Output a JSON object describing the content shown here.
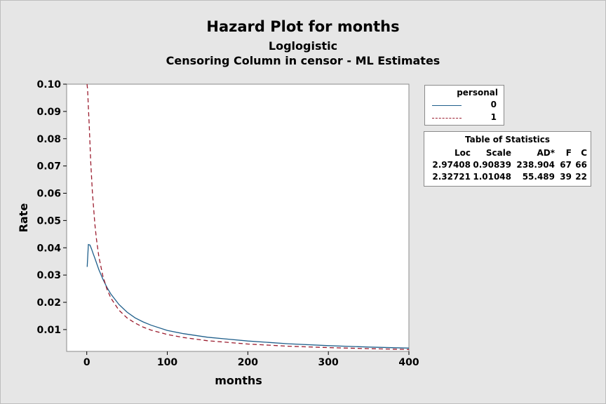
{
  "chart_data": {
    "type": "line",
    "title": "Hazard Plot for months",
    "subtitle": "Loglogistic",
    "subtitle2": "Censoring Column in censor - ML Estimates",
    "xlabel": "months",
    "ylabel": "Rate",
    "xlim": [
      -25,
      400
    ],
    "ylim": [
      0.002,
      0.1
    ],
    "xticks": [
      0,
      100,
      200,
      300,
      400
    ],
    "yticks": [
      0.01,
      0.02,
      0.03,
      0.04,
      0.05,
      0.06,
      0.07,
      0.08,
      0.09,
      0.1
    ],
    "ytick_labels": [
      "0.01",
      "0.02",
      "0.03",
      "0.04",
      "0.05",
      "0.06",
      "0.07",
      "0.08",
      "0.09",
      "0.10"
    ],
    "grid": false,
    "legend_position": "right",
    "series": [
      {
        "name": "0",
        "color": "#1f5f8b",
        "style": "solid",
        "x": [
          0.5,
          2,
          4,
          6,
          8,
          10,
          15,
          20,
          25,
          30,
          40,
          50,
          60,
          70,
          80,
          100,
          120,
          150,
          175,
          200,
          250,
          300,
          350,
          400
        ],
        "y": [
          0.033,
          0.0412,
          0.041,
          0.0395,
          0.0378,
          0.0362,
          0.032,
          0.0285,
          0.0255,
          0.023,
          0.0192,
          0.0164,
          0.0143,
          0.0128,
          0.0116,
          0.0097,
          0.0085,
          0.0072,
          0.0065,
          0.0058,
          0.0048,
          0.0041,
          0.0036,
          0.0032
        ]
      },
      {
        "name": "1",
        "color": "#9b1c2e",
        "style": "dashed",
        "x": [
          0.3,
          1,
          2,
          3,
          5,
          7,
          10,
          12,
          15,
          20,
          25,
          30,
          40,
          50,
          60,
          70,
          80,
          100,
          120,
          150,
          200,
          250,
          300,
          350,
          400
        ],
        "y": [
          0.1,
          0.098,
          0.0915,
          0.085,
          0.0712,
          0.0605,
          0.0488,
          0.0432,
          0.0368,
          0.0296,
          0.0249,
          0.0215,
          0.0171,
          0.0143,
          0.0124,
          0.0109,
          0.0098,
          0.0082,
          0.0071,
          0.0059,
          0.0047,
          0.0039,
          0.0034,
          0.003,
          0.0027
        ]
      }
    ]
  },
  "legend": {
    "title": "personal",
    "items": [
      {
        "label": "0",
        "color": "#1f5f8b",
        "style": "solid"
      },
      {
        "label": "1",
        "color": "#9b1c2e",
        "style": "dashed"
      }
    ]
  },
  "stats_table": {
    "title": "Table of Statistics",
    "headers": [
      "Loc",
      "Scale",
      "AD*",
      "F",
      "C"
    ],
    "rows": [
      [
        "2.97408",
        "0.90839",
        "238.904",
        "67",
        "66"
      ],
      [
        "2.32721",
        "1.01048",
        "55.489",
        "39",
        "22"
      ]
    ]
  }
}
